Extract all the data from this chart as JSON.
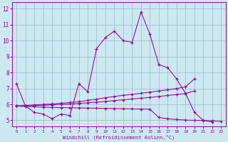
{
  "xlabel": "Windchill (Refroidissement éolien,°C)",
  "x_ticks": [
    0,
    1,
    2,
    3,
    4,
    5,
    6,
    7,
    8,
    9,
    10,
    11,
    12,
    13,
    14,
    15,
    16,
    17,
    18,
    19,
    20,
    21,
    22,
    23
  ],
  "ylim": [
    4.6,
    12.4
  ],
  "xlim": [
    -0.5,
    23.5
  ],
  "yticks": [
    5,
    6,
    7,
    8,
    9,
    10,
    11,
    12
  ],
  "bg_color": "#cce8f0",
  "line_color": "#990099",
  "grid_color": "#99bbcc",
  "line1_x": [
    0,
    1,
    2,
    3,
    4,
    5,
    6,
    7,
    8,
    9,
    10,
    11,
    12,
    13,
    14,
    15,
    16,
    17,
    18,
    19,
    20,
    21,
    22
  ],
  "line1_y": [
    7.3,
    5.9,
    5.5,
    5.4,
    5.1,
    5.4,
    5.3,
    7.3,
    6.8,
    9.5,
    10.2,
    10.6,
    10.0,
    9.9,
    11.8,
    10.4,
    8.5,
    8.3,
    7.6,
    6.7,
    5.5,
    5.0,
    4.9
  ],
  "line_rising1_x": [
    0,
    1,
    2,
    3,
    4,
    5,
    6,
    7,
    8,
    9,
    10,
    11,
    12,
    13,
    14,
    15,
    16,
    17,
    18,
    19,
    20
  ],
  "line_rising1_y": [
    5.9,
    5.93,
    5.97,
    6.0,
    6.03,
    6.07,
    6.12,
    6.17,
    6.25,
    6.33,
    6.42,
    6.5,
    6.57,
    6.63,
    6.7,
    6.77,
    6.84,
    6.92,
    7.0,
    7.1,
    7.6
  ],
  "line_rising2_x": [
    0,
    1,
    2,
    3,
    4,
    5,
    6,
    7,
    8,
    9,
    10,
    11,
    12,
    13,
    14,
    15,
    16,
    17,
    18,
    19,
    20
  ],
  "line_rising2_y": [
    5.9,
    5.91,
    5.93,
    5.95,
    5.97,
    6.0,
    6.03,
    6.06,
    6.1,
    6.14,
    6.19,
    6.24,
    6.29,
    6.34,
    6.39,
    6.44,
    6.5,
    6.56,
    6.62,
    6.68,
    6.85
  ],
  "line_flat_x": [
    0,
    1,
    2,
    3,
    4,
    5,
    6,
    7,
    8,
    9,
    10,
    11,
    12,
    13,
    14,
    15,
    16,
    17,
    18,
    19,
    20,
    21,
    22,
    23
  ],
  "line_flat_y": [
    5.9,
    5.87,
    5.85,
    5.83,
    5.81,
    5.8,
    5.79,
    5.78,
    5.77,
    5.76,
    5.75,
    5.74,
    5.73,
    5.72,
    5.71,
    5.7,
    5.18,
    5.1,
    5.05,
    5.02,
    5.0,
    4.99,
    4.97,
    4.93
  ]
}
